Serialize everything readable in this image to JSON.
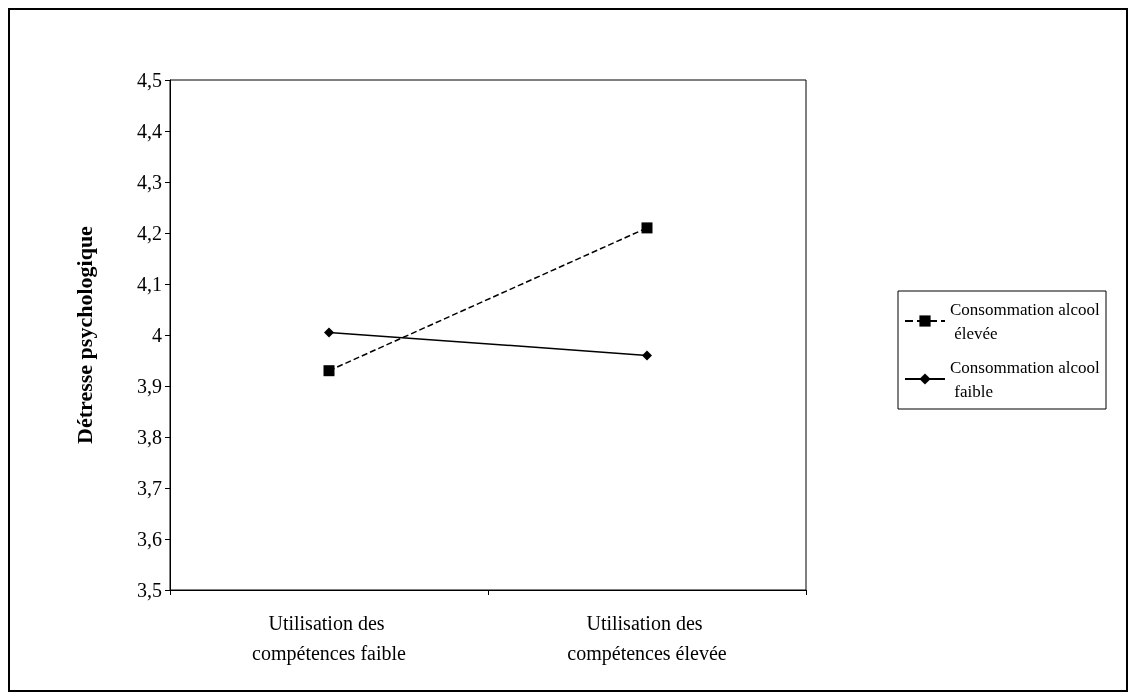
{
  "chart_data": {
    "type": "line",
    "ylabel": "Détresse psychologique",
    "categories": [
      "Utilisation des compétences faible",
      "Utilisation des compétences élevée"
    ],
    "series": [
      {
        "name": "Consommation alcool élevée",
        "color": "#000000",
        "values": [
          3.93,
          4.21
        ],
        "marker": "square",
        "line_style": "dashed"
      },
      {
        "name": "Consommation alcool faible",
        "color": "#000000",
        "values": [
          4.005,
          3.96
        ],
        "marker": "diamond",
        "line_style": "solid"
      }
    ],
    "ylim": [
      3.5,
      4.5
    ],
    "yticks": [
      {
        "value": 3.5,
        "label": "3,5"
      },
      {
        "value": 3.6,
        "label": "3,6"
      },
      {
        "value": 3.7,
        "label": "3,7"
      },
      {
        "value": 3.8,
        "label": "3,8"
      },
      {
        "value": 3.9,
        "label": "3,9"
      },
      4,
      {
        "value": 4.1,
        "label": "4,1"
      },
      {
        "value": 4.2,
        "label": "4,2"
      },
      {
        "value": 4.3,
        "label": "4,3"
      },
      {
        "value": 4.4,
        "label": "4,4"
      },
      {
        "value": 4.5,
        "label": "4,5"
      }
    ],
    "grid": false,
    "legend": "right"
  }
}
